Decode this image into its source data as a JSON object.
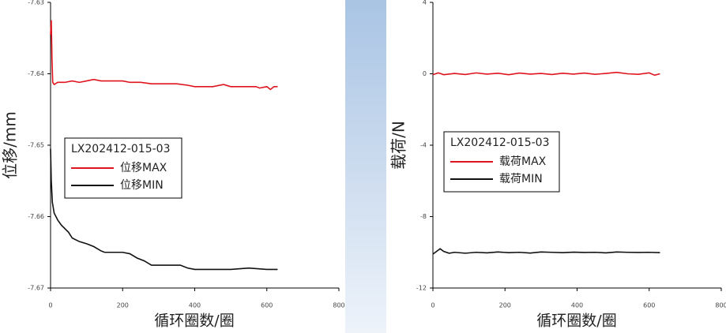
{
  "chart_data": [
    {
      "type": "line",
      "ylabel": "位移/mm",
      "xlabel": "循环圈数/圈",
      "legend_title": "LX202412-015-03",
      "xlim": [
        0,
        800
      ],
      "xticks": [
        0,
        200,
        400,
        600,
        800
      ],
      "ylim": [
        -7.67,
        -7.63
      ],
      "yticks": [
        -7.63,
        -7.64,
        -7.65,
        -7.66,
        -7.67
      ],
      "series": [
        {
          "name": "位移MAX",
          "color": "#e0141e",
          "x": [
            0,
            2,
            4,
            6,
            10,
            20,
            40,
            60,
            80,
            100,
            120,
            140,
            160,
            180,
            200,
            220,
            250,
            280,
            320,
            350,
            380,
            400,
            420,
            450,
            480,
            500,
            520,
            550,
            570,
            580,
            600,
            610,
            620,
            630
          ],
          "values": [
            -7.6345,
            -7.6325,
            -7.638,
            -7.6412,
            -7.6415,
            -7.6412,
            -7.6412,
            -7.641,
            -7.6412,
            -7.641,
            -7.6408,
            -7.641,
            -7.641,
            -7.641,
            -7.641,
            -7.6412,
            -7.6412,
            -7.6414,
            -7.6414,
            -7.6414,
            -7.6416,
            -7.6418,
            -7.6418,
            -7.6418,
            -7.6415,
            -7.6418,
            -7.6418,
            -7.6418,
            -7.6418,
            -7.642,
            -7.6418,
            -7.6422,
            -7.6418,
            -7.6418
          ]
        },
        {
          "name": "位移MIN",
          "color": "#111111",
          "x": [
            0,
            2,
            5,
            10,
            20,
            30,
            50,
            60,
            80,
            100,
            120,
            140,
            150,
            200,
            220,
            240,
            260,
            280,
            320,
            360,
            380,
            400,
            450,
            500,
            550,
            600,
            630
          ],
          "values": [
            -7.6505,
            -7.655,
            -7.658,
            -7.6595,
            -7.6605,
            -7.6612,
            -7.6622,
            -7.663,
            -7.6635,
            -7.6638,
            -7.6642,
            -7.6648,
            -7.665,
            -7.665,
            -7.6652,
            -7.6658,
            -7.6662,
            -7.6668,
            -7.6668,
            -7.6668,
            -7.6672,
            -7.6674,
            -7.6674,
            -7.6674,
            -7.6672,
            -7.6674,
            -7.6674
          ]
        }
      ]
    },
    {
      "type": "line",
      "ylabel": "载荷/N",
      "xlabel": "循环圈数/圈",
      "legend_title": "LX202412-015-03",
      "xlim": [
        0,
        800
      ],
      "xticks": [
        0,
        200,
        400,
        600,
        800
      ],
      "ylim": [
        -12,
        4
      ],
      "yticks": [
        4,
        0,
        -4,
        -8,
        -12
      ],
      "series": [
        {
          "name": "载荷MAX",
          "color": "#e0141e",
          "x": [
            0,
            15,
            30,
            60,
            90,
            120,
            150,
            180,
            210,
            240,
            270,
            300,
            330,
            360,
            390,
            420,
            450,
            480,
            510,
            540,
            570,
            600,
            615,
            630
          ],
          "values": [
            -0.05,
            0.05,
            -0.05,
            0.02,
            -0.04,
            0.05,
            -0.02,
            0.03,
            -0.05,
            0.04,
            -0.02,
            0.02,
            -0.04,
            0.03,
            -0.02,
            0.04,
            -0.03,
            0.02,
            0.08,
            0.0,
            -0.03,
            0.05,
            -0.08,
            0.0
          ]
        },
        {
          "name": "载荷MIN",
          "color": "#111111",
          "x": [
            0,
            10,
            20,
            30,
            45,
            60,
            90,
            120,
            150,
            180,
            210,
            240,
            270,
            300,
            330,
            360,
            390,
            420,
            450,
            480,
            510,
            540,
            570,
            600,
            630
          ],
          "values": [
            -10.1,
            -9.95,
            -9.8,
            -9.95,
            -10.05,
            -10.0,
            -10.05,
            -10.0,
            -10.03,
            -9.98,
            -10.02,
            -10.0,
            -10.04,
            -9.98,
            -10.0,
            -10.02,
            -9.99,
            -10.01,
            -10.0,
            -10.03,
            -9.98,
            -10.0,
            -10.01,
            -10.0,
            -10.02
          ]
        }
      ]
    }
  ]
}
